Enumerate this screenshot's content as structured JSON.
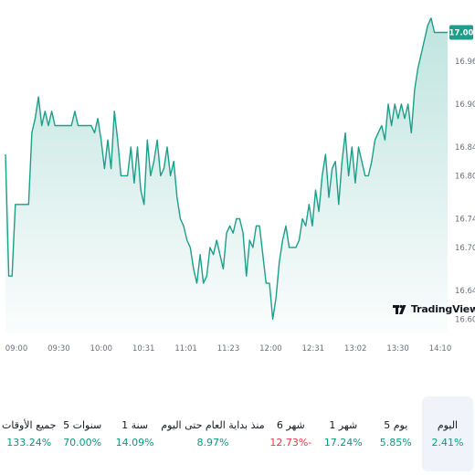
{
  "chart_data": {
    "type": "area",
    "x_tick_labels": [
      "09:00",
      "09:30",
      "10:00",
      "10:31",
      "11:01",
      "11:23",
      "12:00",
      "12:31",
      "13:02",
      "13:30",
      "14:10"
    ],
    "y_ticks": [
      16.6,
      16.64,
      16.7,
      16.74,
      16.8,
      16.84,
      16.9,
      16.96
    ],
    "y_tick_labels": [
      "16.60",
      "16.64",
      "16.70",
      "16.74",
      "16.80",
      "16.84",
      "16.90",
      "16.96"
    ],
    "ylim": [
      16.58,
      17.03
    ],
    "last_price": 17.0,
    "last_price_label": "17.00",
    "line_color": "#1b9e8a",
    "fill_color": "#1b9e8a",
    "grid": false,
    "series": [
      {
        "values": [
          16.83,
          16.66,
          16.66,
          16.76,
          16.76,
          16.76,
          16.76,
          16.76,
          16.86,
          16.88,
          16.91,
          16.87,
          16.89,
          16.87,
          16.89,
          16.87,
          16.87,
          16.87,
          16.87,
          16.87,
          16.87,
          16.89,
          16.87,
          16.87,
          16.87,
          16.87,
          16.87,
          16.86,
          16.88,
          16.85,
          16.81,
          16.85,
          16.81,
          16.89,
          16.85,
          16.8,
          16.8,
          16.8,
          16.84,
          16.79,
          16.84,
          16.78,
          16.76,
          16.85,
          16.8,
          16.82,
          16.85,
          16.8,
          16.81,
          16.84,
          16.8,
          16.82,
          16.77,
          16.74,
          16.73,
          16.71,
          16.7,
          16.67,
          16.65,
          16.69,
          16.65,
          16.66,
          16.7,
          16.69,
          16.71,
          16.69,
          16.67,
          16.72,
          16.73,
          16.72,
          16.74,
          16.74,
          16.72,
          16.66,
          16.71,
          16.7,
          16.73,
          16.73,
          16.69,
          16.65,
          16.65,
          16.6,
          16.63,
          16.68,
          16.71,
          16.73,
          16.7,
          16.7,
          16.7,
          16.71,
          16.74,
          16.73,
          16.76,
          16.73,
          16.78,
          16.75,
          16.8,
          16.83,
          16.77,
          16.81,
          16.82,
          16.76,
          16.82,
          16.86,
          16.8,
          16.84,
          16.79,
          16.84,
          16.82,
          16.8,
          16.8,
          16.82,
          16.85,
          16.86,
          16.87,
          16.85,
          16.9,
          16.87,
          16.9,
          16.88,
          16.9,
          16.88,
          16.9,
          16.86,
          16.92,
          16.95,
          16.97,
          16.99,
          17.01,
          17.02,
          17.0,
          17.0,
          17.0,
          17.0,
          17.0
        ]
      }
    ]
  },
  "branding": {
    "logo_text": "TradingView"
  },
  "performance": [
    {
      "label": "اليوم",
      "value": "2.41%",
      "trend": "pos",
      "active": true
    },
    {
      "label": "5 يوم",
      "value": "5.85%",
      "trend": "pos",
      "active": false
    },
    {
      "label": "1 شهر",
      "value": "17.24%",
      "trend": "pos",
      "active": false
    },
    {
      "label": "6 شهر",
      "value": "12.73%-",
      "trend": "neg",
      "active": false
    },
    {
      "label": "منذ بداية العام حتى اليوم",
      "value": "8.97%",
      "trend": "pos",
      "active": false
    },
    {
      "label": "1 سنة",
      "value": "14.09%",
      "trend": "pos",
      "active": false
    },
    {
      "label": "5 سنوات",
      "value": "70.00%",
      "trend": "pos",
      "active": false
    },
    {
      "label": "جميع الأوقات",
      "value": "133.24%",
      "trend": "pos",
      "active": false
    }
  ]
}
